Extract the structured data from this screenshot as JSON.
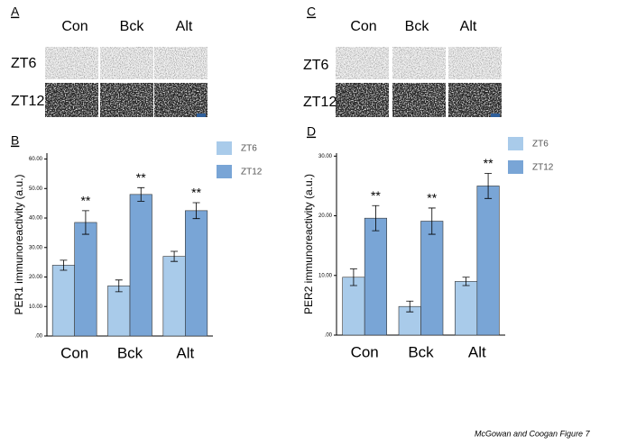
{
  "panels": [
    {
      "label": "A",
      "columns": [
        "Con",
        "Bck",
        "Alt"
      ],
      "rows": [
        "ZT6",
        "ZT12"
      ]
    },
    {
      "label": "C",
      "columns": [
        "Con",
        "Bck",
        "Alt"
      ],
      "rows": [
        "ZT6",
        "ZT12"
      ]
    }
  ],
  "caption": "McGowan and Coogan Figure 7",
  "chart_data": [
    {
      "type": "bar",
      "panel_label": "B",
      "y_label": "PER1 immunoreactivity (a.u.)",
      "categories": [
        "Con",
        "Bck",
        "Alt"
      ],
      "series": [
        {
          "name": "ZT6",
          "color": "#a9cbea",
          "values": [
            24,
            17,
            27
          ],
          "errors": [
            1.7,
            2,
            1.7
          ]
        },
        {
          "name": "ZT12",
          "color": "#79a5d6",
          "values": [
            38.5,
            48,
            42.5
          ],
          "errors": [
            4,
            2.3,
            2.7
          ],
          "markers": [
            "**",
            "**",
            "**"
          ]
        }
      ],
      "ylim": [
        0,
        62
      ],
      "yticks": [
        {
          "value": 0,
          "label": ".00"
        },
        {
          "value": 10,
          "label": "10.00"
        },
        {
          "value": 20,
          "label": "20.00"
        },
        {
          "value": 30,
          "label": "30.00"
        },
        {
          "value": 40,
          "label": "40.00"
        },
        {
          "value": 50,
          "label": "50.00"
        },
        {
          "value": 60,
          "label": "60.00"
        }
      ],
      "legend": "upper right"
    },
    {
      "type": "bar",
      "panel_label": "D",
      "y_label": "PER2 immunoreactivity (a.u.)",
      "categories": [
        "Con",
        "Bck",
        "Alt"
      ],
      "series": [
        {
          "name": "ZT6",
          "color": "#a9cbea",
          "values": [
            9.7,
            4.8,
            9
          ],
          "errors": [
            1.4,
            0.9,
            0.7
          ]
        },
        {
          "name": "ZT12",
          "color": "#79a5d6",
          "values": [
            19.6,
            19.1,
            25
          ],
          "errors": [
            2.1,
            2.2,
            2.1
          ],
          "markers": [
            "**",
            "**",
            "**"
          ]
        }
      ],
      "ylim": [
        0,
        30.5
      ],
      "yticks": [
        {
          "value": 0,
          "label": ".00"
        },
        {
          "value": 10,
          "label": "10.00"
        },
        {
          "value": 20,
          "label": "20.00"
        },
        {
          "value": 30,
          "label": "30.00"
        }
      ],
      "legend": "upper right"
    }
  ]
}
